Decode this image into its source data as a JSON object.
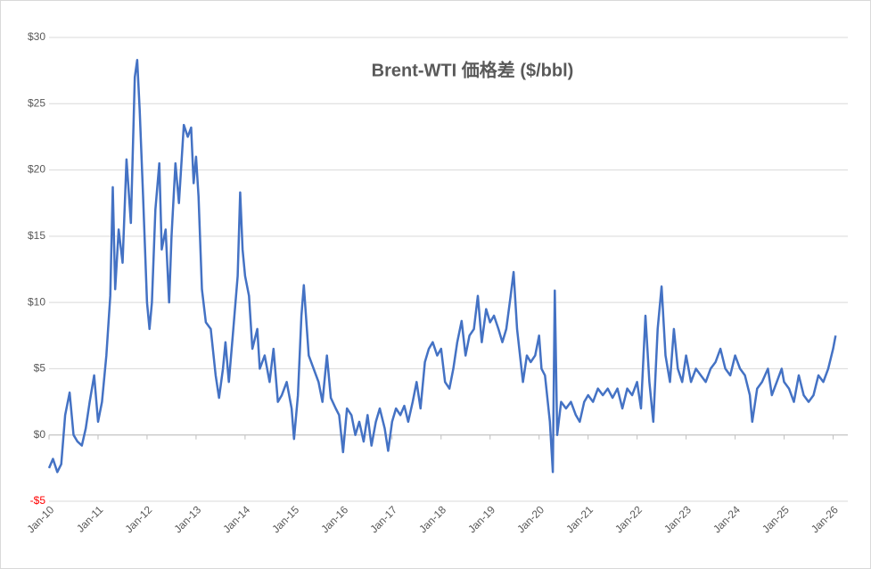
{
  "chart_data": {
    "type": "line",
    "title": "Brent-WTI 価格差 ($/bbl)",
    "color": "#4472c4",
    "negative_tick_color": "#ff0000",
    "grid": true,
    "x": [
      2010.0,
      2010.08,
      2010.17,
      2010.25,
      2010.33,
      2010.42,
      2010.5,
      2010.58,
      2010.67,
      2010.75,
      2010.83,
      2010.92,
      2011.0,
      2011.08,
      2011.17,
      2011.25,
      2011.3,
      2011.35,
      2011.42,
      2011.5,
      2011.58,
      2011.67,
      2011.75,
      2011.8,
      2011.85,
      2011.92,
      2012.0,
      2012.05,
      2012.1,
      2012.17,
      2012.25,
      2012.3,
      2012.38,
      2012.45,
      2012.5,
      2012.58,
      2012.65,
      2012.75,
      2012.83,
      2012.9,
      2012.95,
      2013.0,
      2013.05,
      2013.12,
      2013.2,
      2013.3,
      2013.4,
      2013.47,
      2013.55,
      2013.6,
      2013.67,
      2013.75,
      2013.85,
      2013.9,
      2013.95,
      2014.0,
      2014.08,
      2014.15,
      2014.25,
      2014.3,
      2014.4,
      2014.5,
      2014.58,
      2014.67,
      2014.75,
      2014.85,
      2014.95,
      2015.0,
      2015.08,
      2015.15,
      2015.2,
      2015.3,
      2015.4,
      2015.5,
      2015.58,
      2015.67,
      2015.75,
      2015.85,
      2015.92,
      2016.0,
      2016.08,
      2016.17,
      2016.25,
      2016.33,
      2016.42,
      2016.5,
      2016.58,
      2016.67,
      2016.75,
      2016.85,
      2016.92,
      2017.0,
      2017.08,
      2017.17,
      2017.25,
      2017.33,
      2017.42,
      2017.5,
      2017.58,
      2017.67,
      2017.75,
      2017.83,
      2017.92,
      2018.0,
      2018.08,
      2018.17,
      2018.25,
      2018.33,
      2018.42,
      2018.5,
      2018.58,
      2018.67,
      2018.75,
      2018.83,
      2018.92,
      2019.0,
      2019.08,
      2019.17,
      2019.25,
      2019.33,
      2019.42,
      2019.48,
      2019.55,
      2019.67,
      2019.75,
      2019.83,
      2019.92,
      2020.0,
      2020.05,
      2020.12,
      2020.22,
      2020.28,
      2020.32,
      2020.37,
      2020.45,
      2020.55,
      2020.65,
      2020.75,
      2020.83,
      2020.92,
      2021.0,
      2021.1,
      2021.2,
      2021.3,
      2021.4,
      2021.5,
      2021.6,
      2021.7,
      2021.8,
      2021.9,
      2022.0,
      2022.08,
      2022.17,
      2022.25,
      2022.33,
      2022.42,
      2022.5,
      2022.58,
      2022.67,
      2022.75,
      2022.83,
      2022.92,
      2023.0,
      2023.1,
      2023.2,
      2023.3,
      2023.4,
      2023.5,
      2023.6,
      2023.7,
      2023.8,
      2023.9,
      2024.0,
      2024.1,
      2024.2,
      2024.3,
      2024.35,
      2024.45,
      2024.55,
      2024.67,
      2024.75,
      2024.85,
      2024.95,
      2025.0,
      2025.1,
      2025.2,
      2025.3,
      2025.4,
      2025.5,
      2025.6,
      2025.7,
      2025.8,
      2025.9,
      2026.0,
      2026.05
    ],
    "values": [
      -2.5,
      -1.8,
      -2.8,
      -2.2,
      1.5,
      3.2,
      0,
      -0.5,
      -0.8,
      0.5,
      2.5,
      4.5,
      1.0,
      2.5,
      6,
      10.5,
      18.7,
      11,
      15.5,
      13,
      20.8,
      16,
      27,
      28.3,
      24.5,
      18,
      10,
      8,
      10,
      17,
      20.5,
      14,
      15.5,
      10,
      15,
      20.5,
      17.5,
      23.4,
      22.5,
      23.2,
      19,
      21,
      18,
      11,
      8.5,
      8,
      4.5,
      2.8,
      5,
      7,
      4,
      7.5,
      12,
      18.3,
      14,
      12,
      10.5,
      6.5,
      8,
      5,
      6,
      4,
      6.5,
      2.5,
      3,
      4,
      2,
      -0.3,
      3,
      9,
      11.3,
      6,
      5,
      4,
      2.5,
      6,
      2.8,
      2,
      1.5,
      -1.3,
      2,
      1.5,
      0,
      1,
      -0.5,
      1.5,
      -0.8,
      1,
      2,
      0.5,
      -1.2,
      1,
      2,
      1.5,
      2.2,
      1,
      2.5,
      4.0,
      2,
      5.5,
      6.5,
      7,
      6,
      6.5,
      4,
      3.5,
      5,
      7,
      8.6,
      6,
      7.5,
      8,
      10.5,
      7,
      9.5,
      8.5,
      9,
      8,
      7,
      8,
      10.5,
      12.3,
      8,
      4,
      6,
      5.5,
      6,
      7.5,
      5,
      4.5,
      1,
      -2.8,
      10.9,
      0,
      2.5,
      2,
      2.5,
      1.5,
      1,
      2.5,
      3,
      2.5,
      3.5,
      3,
      3.5,
      2.8,
      3.5,
      2,
      3.5,
      3,
      4,
      2,
      9,
      4,
      1,
      8,
      11.2,
      6,
      4,
      8,
      5,
      4,
      6,
      4,
      5,
      4.5,
      4,
      5,
      5.5,
      6.5,
      5,
      4.5,
      6,
      5,
      4.5,
      3,
      1,
      3.5,
      4,
      5,
      3,
      4,
      5,
      4,
      3.5,
      2.5,
      4.5,
      3,
      2.5,
      3,
      4.5,
      4,
      5,
      6.5,
      7.5
    ],
    "xlim": [
      2010,
      2026.3
    ],
    "xticks": [
      {
        "value": 2010,
        "label": "Jan-10"
      },
      {
        "value": 2011,
        "label": "Jan-11"
      },
      {
        "value": 2012,
        "label": "Jan-12"
      },
      {
        "value": 2013,
        "label": "Jan-13"
      },
      {
        "value": 2014,
        "label": "Jan-14"
      },
      {
        "value": 2015,
        "label": "Jan-15"
      },
      {
        "value": 2016,
        "label": "Jan-16"
      },
      {
        "value": 2017,
        "label": "Jan-17"
      },
      {
        "value": 2018,
        "label": "Jan-18"
      },
      {
        "value": 2019,
        "label": "Jan-19"
      },
      {
        "value": 2020,
        "label": "Jan-20"
      },
      {
        "value": 2021,
        "label": "Jan-21"
      },
      {
        "value": 2022,
        "label": "Jan-22"
      },
      {
        "value": 2023,
        "label": "Jan-23"
      },
      {
        "value": 2024,
        "label": "Jan-24"
      },
      {
        "value": 2025,
        "label": "Jan-25"
      },
      {
        "value": 2026,
        "label": "Jan-26"
      }
    ],
    "ylim": [
      -5,
      30
    ],
    "yticks": [
      {
        "value": -5,
        "label": "-$5"
      },
      {
        "value": 0,
        "label": "$0"
      },
      {
        "value": 5,
        "label": "$5"
      },
      {
        "value": 10,
        "label": "$10"
      },
      {
        "value": 15,
        "label": "$15"
      },
      {
        "value": 20,
        "label": "$20"
      },
      {
        "value": 25,
        "label": "$25"
      },
      {
        "value": 30,
        "label": "$30"
      }
    ]
  }
}
